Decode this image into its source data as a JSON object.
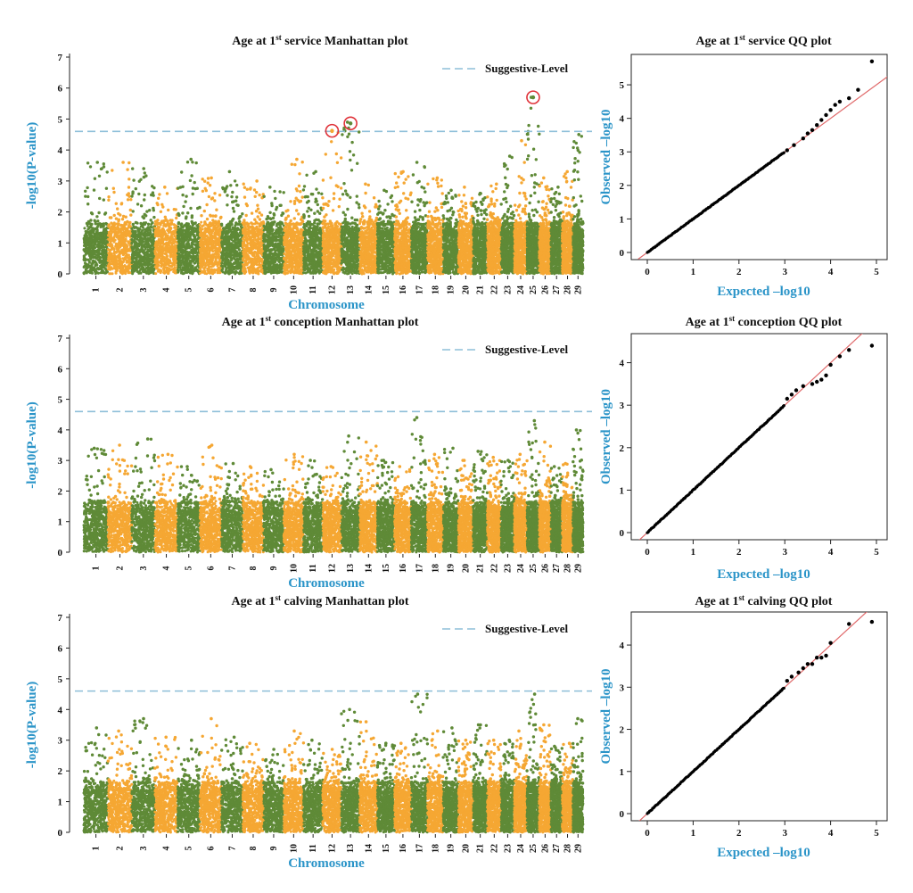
{
  "colors": {
    "green": "#5f8a37",
    "orange": "#f5a733",
    "threshold": "#8ebfd9",
    "axis_title": "#2a94c8",
    "highlight_circle": "#e0333a",
    "qq_line": "#e0696a",
    "qq_points": "#000000"
  },
  "chart_data": [
    {
      "type": "scatter",
      "kind": "manhattan",
      "title_parts": [
        "Age at 1",
        "st",
        " service Manhattan plot"
      ],
      "xlabel": "Chromosome",
      "ylabel": "-log10(P-value)",
      "ylim": [
        0,
        7
      ],
      "yticks": [
        "0",
        "1",
        "2",
        "3",
        "4",
        "5",
        "6",
        "7"
      ],
      "legend": {
        "label": "Suggestive-Level",
        "placement": "top-right"
      },
      "threshold": 4.6,
      "chromosomes": [
        "1",
        "2",
        "3",
        "4",
        "5",
        "6",
        "7",
        "8",
        "9",
        "10",
        "11",
        "12",
        "13",
        "14",
        "15",
        "16",
        "17",
        "18",
        "19",
        "20",
        "21",
        "22",
        "23",
        "24",
        "25",
        "26",
        "27",
        "28",
        "29"
      ],
      "peak_max": [
        3.6,
        3.6,
        3.4,
        2.8,
        3.7,
        3.1,
        3.3,
        3.0,
        2.8,
        3.7,
        3.3,
        4.6,
        4.9,
        2.9,
        2.7,
        3.3,
        3.6,
        3.1,
        2.7,
        2.8,
        2.6,
        2.9,
        3.8,
        4.3,
        5.7,
        3.1,
        2.8,
        3.3,
        4.5
      ],
      "highlighted": [
        {
          "chromosome": "12",
          "value": 4.62
        },
        {
          "chromosome": "13",
          "value": 4.86
        },
        {
          "chromosome": "25",
          "value": 5.7
        }
      ]
    },
    {
      "type": "scatter",
      "kind": "qq",
      "title_parts": [
        "Age  at 1",
        "st",
        " service QQ plot"
      ],
      "xlabel": "Expected –log10",
      "ylabel": "Observed –log10",
      "xlim": [
        0,
        5
      ],
      "ylim": [
        0,
        5.8
      ],
      "xticks": [
        "0",
        "1",
        "2",
        "3",
        "4",
        "5"
      ],
      "yticks": [
        "0",
        "1",
        "2",
        "3",
        "4",
        "5"
      ],
      "tail": [
        [
          3.05,
          3.05
        ],
        [
          3.2,
          3.2
        ],
        [
          3.4,
          3.4
        ],
        [
          3.5,
          3.55
        ],
        [
          3.6,
          3.65
        ],
        [
          3.7,
          3.8
        ],
        [
          3.8,
          3.95
        ],
        [
          3.9,
          4.1
        ],
        [
          4.0,
          4.25
        ],
        [
          4.1,
          4.4
        ],
        [
          4.2,
          4.5
        ],
        [
          4.4,
          4.6
        ],
        [
          4.6,
          4.85
        ],
        [
          4.9,
          5.7
        ]
      ]
    },
    {
      "type": "scatter",
      "kind": "manhattan",
      "title_parts": [
        "Age at 1",
        "st",
        " conception Manhattan plot"
      ],
      "xlabel": "Chromosome",
      "ylabel": "-log10(P-value)",
      "ylim": [
        0,
        7
      ],
      "yticks": [
        "0",
        "1",
        "2",
        "3",
        "4",
        "5",
        "6",
        "7"
      ],
      "legend": {
        "label": "Suggestive-Level",
        "placement": "top-right"
      },
      "threshold": 4.6,
      "chromosomes": [
        "1",
        "2",
        "3",
        "4",
        "5",
        "6",
        "7",
        "8",
        "9",
        "10",
        "11",
        "12",
        "13",
        "14",
        "15",
        "16",
        "17",
        "18",
        "19",
        "20",
        "21",
        "22",
        "23",
        "24",
        "25",
        "26",
        "27",
        "28",
        "29"
      ],
      "peak_max": [
        3.4,
        3.5,
        3.7,
        3.2,
        2.8,
        3.5,
        2.9,
        2.8,
        2.7,
        3.2,
        3.0,
        2.8,
        3.8,
        3.6,
        3.0,
        2.8,
        4.4,
        3.2,
        3.4,
        3.0,
        3.3,
        3.1,
        3.0,
        3.2,
        4.3,
        3.6,
        2.8,
        2.9,
        4.0
      ],
      "highlighted": []
    },
    {
      "type": "scatter",
      "kind": "qq",
      "title_parts": [
        "Age at 1",
        "st",
        " conception QQ plot"
      ],
      "xlabel": "Expected –log10",
      "ylabel": "Observed –log10",
      "xlim": [
        0,
        5
      ],
      "ylim": [
        0,
        4.6
      ],
      "xticks": [
        "0",
        "1",
        "2",
        "3",
        "4",
        "5"
      ],
      "yticks": [
        "0",
        "1",
        "2",
        "3",
        "4"
      ],
      "tail": [
        [
          3.05,
          3.15
        ],
        [
          3.15,
          3.25
        ],
        [
          3.25,
          3.35
        ],
        [
          3.4,
          3.45
        ],
        [
          3.6,
          3.5
        ],
        [
          3.7,
          3.55
        ],
        [
          3.8,
          3.6
        ],
        [
          3.9,
          3.7
        ],
        [
          4.0,
          3.95
        ],
        [
          4.2,
          4.15
        ],
        [
          4.4,
          4.3
        ],
        [
          4.9,
          4.4
        ]
      ]
    },
    {
      "type": "scatter",
      "kind": "manhattan",
      "title_parts": [
        "Age at 1",
        "st",
        " calving Manhattan plot"
      ],
      "xlabel": "Chromosome",
      "ylabel": "-log10(P-value)",
      "ylim": [
        0,
        7
      ],
      "yticks": [
        "0",
        "1",
        "2",
        "3",
        "4",
        "5",
        "6",
        "7"
      ],
      "legend": {
        "label": "Suggestive-Level",
        "placement": "top-right"
      },
      "threshold": 4.6,
      "chromosomes": [
        "1",
        "2",
        "3",
        "4",
        "5",
        "6",
        "7",
        "8",
        "9",
        "10",
        "11",
        "12",
        "13",
        "14",
        "15",
        "16",
        "17",
        "18",
        "19",
        "20",
        "21",
        "22",
        "23",
        "24",
        "25",
        "26",
        "27",
        "28",
        "29"
      ],
      "peak_max": [
        3.4,
        3.3,
        3.7,
        3.1,
        3.0,
        3.7,
        3.1,
        2.9,
        2.7,
        3.3,
        3.0,
        2.7,
        4.0,
        3.6,
        2.9,
        2.9,
        4.5,
        3.3,
        3.4,
        3.0,
        3.5,
        3.0,
        3.0,
        3.3,
        4.5,
        3.5,
        2.8,
        2.9,
        3.7
      ],
      "highlighted": []
    },
    {
      "type": "scatter",
      "kind": "qq",
      "title_parts": [
        "Age at 1",
        "st",
        " calving QQ plot"
      ],
      "xlabel": "Expected –log10",
      "ylabel": "Observed –log10",
      "xlim": [
        0,
        5
      ],
      "ylim": [
        0,
        4.7
      ],
      "xticks": [
        "0",
        "1",
        "2",
        "3",
        "4",
        "5"
      ],
      "yticks": [
        "0",
        "1",
        "2",
        "3",
        "4"
      ],
      "tail": [
        [
          3.05,
          3.15
        ],
        [
          3.15,
          3.25
        ],
        [
          3.3,
          3.35
        ],
        [
          3.4,
          3.45
        ],
        [
          3.5,
          3.55
        ],
        [
          3.6,
          3.55
        ],
        [
          3.7,
          3.7
        ],
        [
          3.8,
          3.7
        ],
        [
          3.9,
          3.75
        ],
        [
          4.0,
          4.05
        ],
        [
          4.4,
          4.5
        ],
        [
          4.9,
          4.55
        ]
      ]
    }
  ]
}
